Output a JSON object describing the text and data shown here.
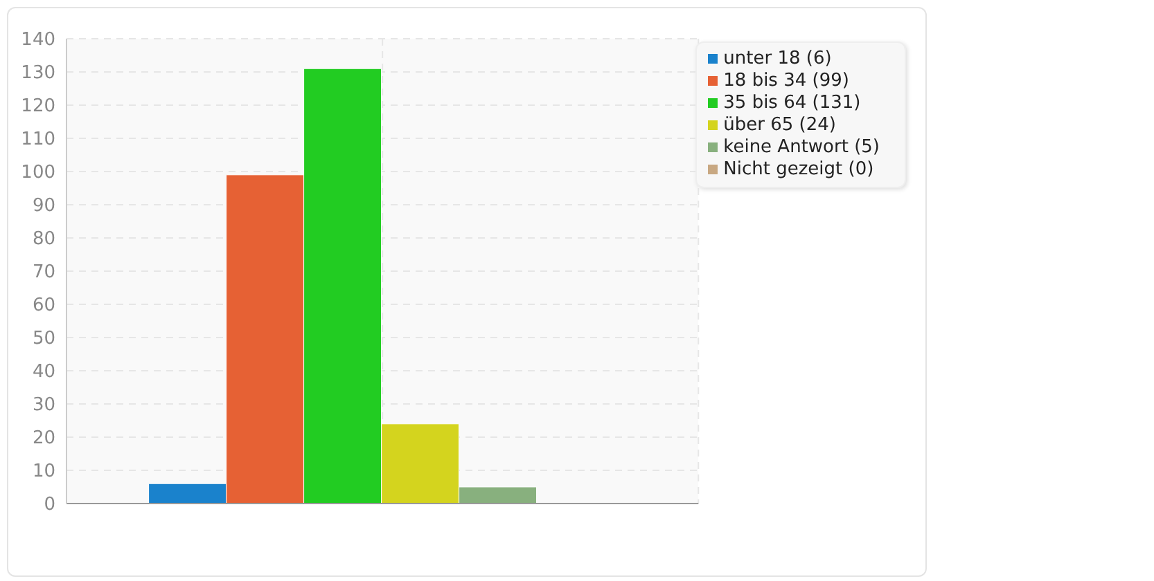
{
  "chart_data": {
    "type": "bar",
    "categories": [
      null
    ],
    "series": [
      {
        "name": "unter 18 (6)",
        "color": "#1a82cc",
        "values": [
          6
        ]
      },
      {
        "name": "18 bis 34 (99)",
        "color": "#e66134",
        "values": [
          99
        ]
      },
      {
        "name": "35 bis 64 (131)",
        "color": "#22cc22",
        "values": [
          131
        ]
      },
      {
        "name": "über 65 (24)",
        "color": "#d4d41e",
        "values": [
          24
        ]
      },
      {
        "name": "keine Antwort (5)",
        "color": "#88b07e",
        "values": [
          5
        ]
      },
      {
        "name": "Nicht gezeigt (0)",
        "color": "#c8a882",
        "values": [
          0
        ]
      }
    ],
    "ylim": [
      0,
      140
    ],
    "yticks": [
      0,
      10,
      20,
      30,
      40,
      50,
      60,
      70,
      80,
      90,
      100,
      110,
      120,
      130,
      140
    ],
    "grid": true,
    "legend": "top right"
  }
}
